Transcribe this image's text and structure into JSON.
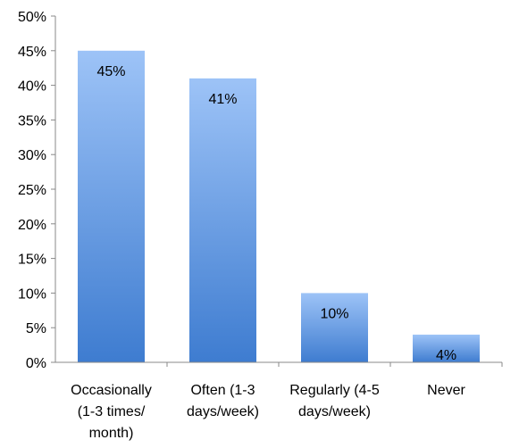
{
  "chart_data": {
    "type": "bar",
    "categories": [
      [
        "Occasionally",
        "(1-3 times/",
        "month)"
      ],
      [
        "Often (1-3",
        "days/week)"
      ],
      [
        "Regularly (4-5",
        "days/week)"
      ],
      [
        "Never"
      ]
    ],
    "values": [
      45,
      41,
      10,
      4
    ],
    "data_labels": [
      "45%",
      "41%",
      "10%",
      "4%"
    ],
    "y_ticks": [
      "0%",
      "5%",
      "10%",
      "15%",
      "20%",
      "25%",
      "30%",
      "35%",
      "40%",
      "45%",
      "50%"
    ],
    "ylim": [
      0,
      50
    ],
    "grid": false,
    "legend": "none",
    "colors": {
      "bar_top": "#9DC3F7",
      "bar_bottom": "#3E7CD0",
      "axis": "#888888"
    }
  }
}
